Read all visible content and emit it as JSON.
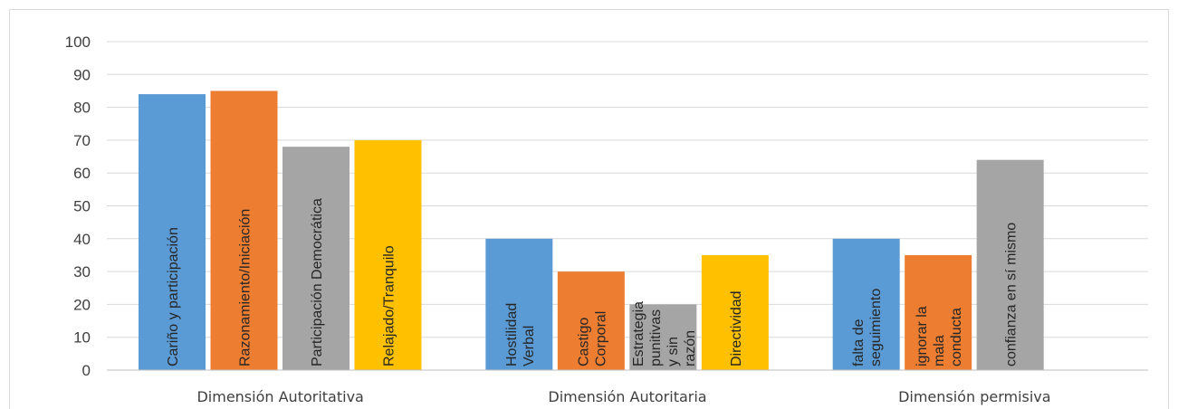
{
  "chart_data": {
    "type": "bar",
    "categories": [
      "Dimensión Autoritativa",
      "Dimensión Autoritaria",
      "Dimensión permisiva"
    ],
    "ylim": [
      0,
      100
    ],
    "yticks": [
      0,
      10,
      20,
      30,
      40,
      50,
      60,
      70,
      80,
      90,
      100
    ],
    "grid": true,
    "groups": [
      {
        "category": "Dimensión Autoritativa",
        "bars": [
          {
            "label": "Cariño y participación",
            "value": 84,
            "color": "#5b9bd5"
          },
          {
            "label": "Razonamiento/Iniciación",
            "value": 85,
            "color": "#ed7d31"
          },
          {
            "label": "Participación Democrática",
            "value": 68,
            "color": "#a5a5a5"
          },
          {
            "label": "Relajado/Tranquilo",
            "value": 70,
            "color": "#ffc000"
          }
        ]
      },
      {
        "category": "Dimensión Autoritaria",
        "bars": [
          {
            "label": "Hostilidad Verbal",
            "value": 40,
            "color": "#5b9bd5"
          },
          {
            "label": "Castigo Corporal",
            "value": 30,
            "color": "#ed7d31"
          },
          {
            "label": "Estrategia punitivas y sin razón",
            "value": 20,
            "color": "#a5a5a5"
          },
          {
            "label": "Directividad",
            "value": 35,
            "color": "#ffc000"
          }
        ]
      },
      {
        "category": "Dimensión permisiva",
        "bars": [
          {
            "label": "falta de seguimiento",
            "value": 40,
            "color": "#5b9bd5"
          },
          {
            "label": "ignorar la mala conducta",
            "value": 35,
            "color": "#ed7d31"
          },
          {
            "label": "confianza en sí mismo",
            "value": 64,
            "color": "#a5a5a5"
          }
        ]
      }
    ]
  }
}
